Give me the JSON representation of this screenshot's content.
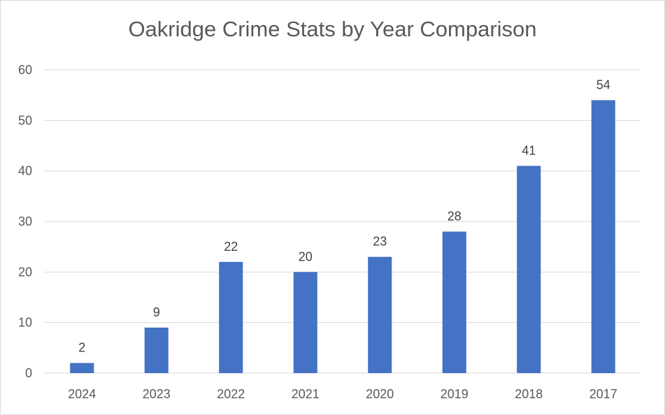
{
  "chart_data": {
    "type": "bar",
    "title": "Oakridge Crime Stats by Year Comparison",
    "categories": [
      "2024",
      "2023",
      "2022",
      "2021",
      "2020",
      "2019",
      "2018",
      "2017"
    ],
    "values": [
      2,
      9,
      22,
      20,
      23,
      28,
      41,
      54
    ],
    "ylim": [
      0,
      60
    ],
    "yticks": [
      0,
      10,
      20,
      30,
      40,
      50,
      60
    ],
    "grid": true,
    "legend": "none",
    "data_labels": true,
    "bar_color": "#4472c4",
    "grid_color": "#d9d9d9",
    "text_color": "#595959"
  }
}
